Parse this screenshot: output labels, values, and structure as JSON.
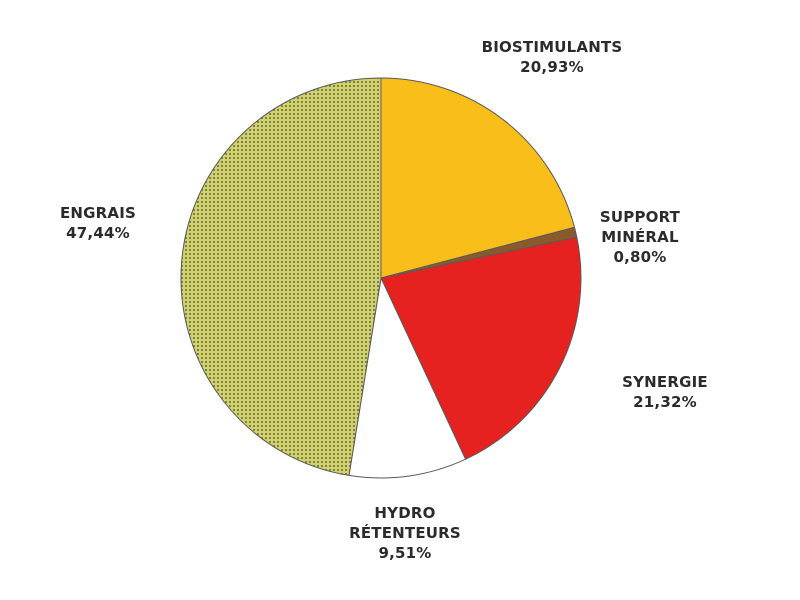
{
  "chart_data": {
    "type": "pie",
    "title": "",
    "slices": [
      {
        "label_lines": [
          "BIOSTIMULANTS",
          "20,93%"
        ],
        "value": 20.93,
        "color": "#F9BE1A",
        "pattern": "solid"
      },
      {
        "label_lines": [
          "SUPPORT",
          "MINÉRAL",
          "0,80%"
        ],
        "value": 0.8,
        "color": "#8B5A2B",
        "pattern": "solid"
      },
      {
        "label_lines": [
          "SYNERGIE",
          "21,32%"
        ],
        "value": 21.32,
        "color": "#E5221F",
        "pattern": "solid"
      },
      {
        "label_lines": [
          "HYDRO",
          "RÉTENTEURS",
          "9,51%"
        ],
        "value": 9.51,
        "color": "#FFFFFF",
        "pattern": "solid"
      },
      {
        "label_lines": [
          "ENGRAIS",
          "47,44%"
        ],
        "value": 47.44,
        "color": "#D8D25A",
        "pattern": "dots",
        "dot_color": "#4C6A8C"
      }
    ],
    "start_angle": "12 o'clock",
    "direction": "clockwise",
    "slice_outline": "#5a5a5a"
  }
}
